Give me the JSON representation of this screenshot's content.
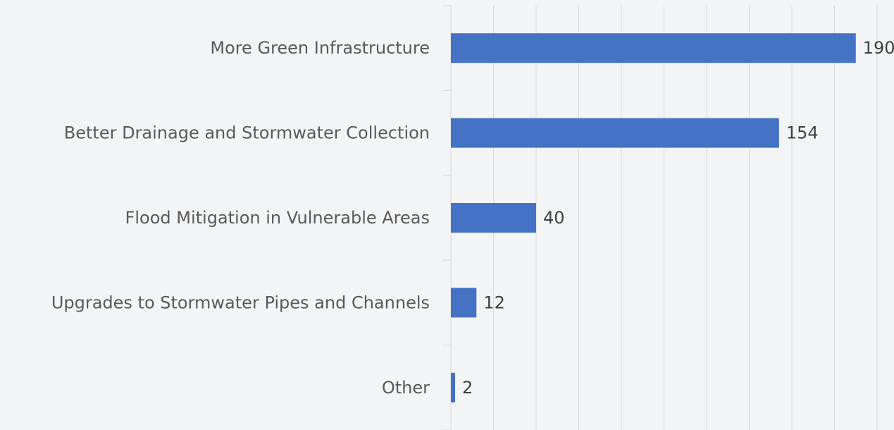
{
  "chart_data": {
    "type": "bar",
    "orientation": "horizontal",
    "categories": [
      "More Green Infrastructure",
      "Better Drainage and Stormwater Collection",
      "Flood Mitigation in Vulnerable Areas",
      "Upgrades to Stormwater Pipes and Channels",
      "Other"
    ],
    "values": [
      190,
      154,
      40,
      12,
      2
    ],
    "color": "#4472c4",
    "xlim": [
      0,
      200
    ],
    "xticks": [
      0,
      20,
      40,
      60,
      80,
      100,
      120,
      140,
      160,
      180,
      200
    ],
    "grid": true
  }
}
